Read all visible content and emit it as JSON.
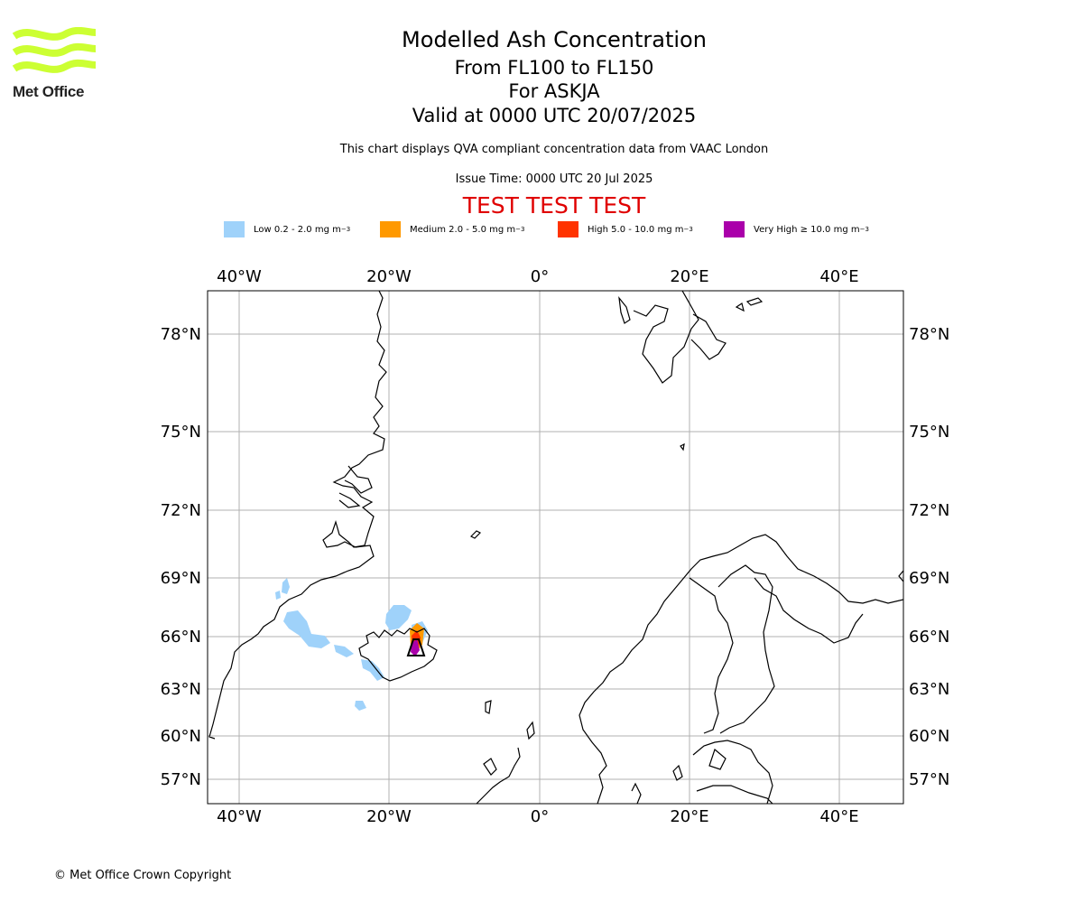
{
  "logo": {
    "text": "Met Office",
    "color": "#ccff33"
  },
  "title": {
    "main": "Modelled Ash Concentration",
    "levels": "From FL100 to FL150",
    "volcano": "For ASKJA",
    "valid": "Valid at 0000 UTC 20/07/2025"
  },
  "subtitle": "This chart displays QVA compliant concentration data from VAAC London",
  "issue_time": "Issue Time: 0000 UTC 20 Jul 2025",
  "test_banner": "TEST TEST TEST",
  "legend": [
    {
      "label": "Low 0.2 - 2.0 mg m",
      "sup": "−3",
      "color": "#9fd2fa"
    },
    {
      "label": "Medium 2.0 - 5.0 mg m",
      "sup": "−3",
      "color": "#ff9900"
    },
    {
      "label": "High 5.0 - 10.0 mg m",
      "sup": "−3",
      "color": "#ff3300"
    },
    {
      "label": "Very High  ≥  10.0 mg m",
      "sup": "−3",
      "color": "#aa00aa"
    }
  ],
  "map": {
    "lon_ticks": [
      "40°W",
      "20°W",
      "0°",
      "20°E",
      "40°E"
    ],
    "lat_ticks": [
      "78°N",
      "75°N",
      "72°N",
      "69°N",
      "66°N",
      "63°N",
      "60°N",
      "57°N"
    ],
    "gridlines": true,
    "extent": {
      "lon": [
        -44,
        48
      ],
      "lat": [
        55,
        80
      ]
    }
  },
  "copyright": "© Met Office Crown Copyright"
}
